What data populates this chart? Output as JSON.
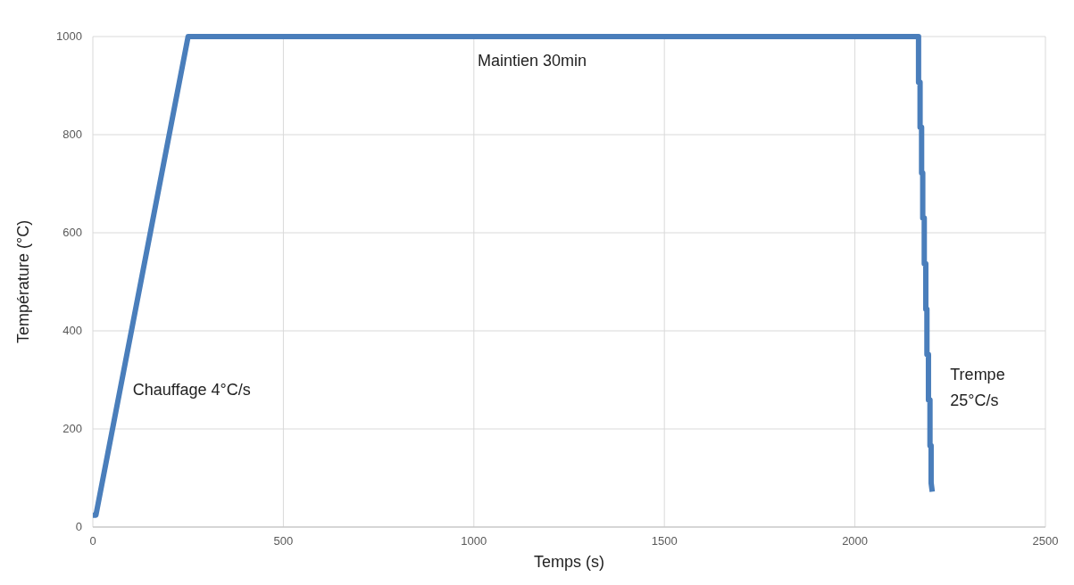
{
  "chart_data": {
    "type": "line",
    "xlabel": "Temps (s)",
    "ylabel": "Température (°C)",
    "xlim": [
      0,
      2500
    ],
    "xticks": [
      0,
      500,
      1000,
      1500,
      2000,
      2500
    ],
    "ylim": [
      0,
      1000
    ],
    "yticks": [
      0,
      200,
      400,
      600,
      800,
      1000
    ],
    "grid": true,
    "series": [
      {
        "color": "#4a7ebb",
        "x": [
          0,
          8,
          250,
          2167,
          2167,
          2171,
          2171,
          2175,
          2175,
          2178,
          2178,
          2182,
          2182,
          2186,
          2186,
          2189,
          2189,
          2193,
          2193,
          2197,
          2197,
          2200,
          2200,
          2203
        ],
        "values": [
          24,
          24,
          1000,
          1000,
          907,
          907,
          815,
          815,
          722,
          722,
          630,
          630,
          537,
          537,
          444,
          444,
          352,
          352,
          259,
          259,
          166,
          166,
          90,
          72
        ]
      }
    ],
    "annotations": [
      "Maintien 30min",
      "Chauffage 4°C/s",
      "Trempe\n25°C/s"
    ]
  }
}
